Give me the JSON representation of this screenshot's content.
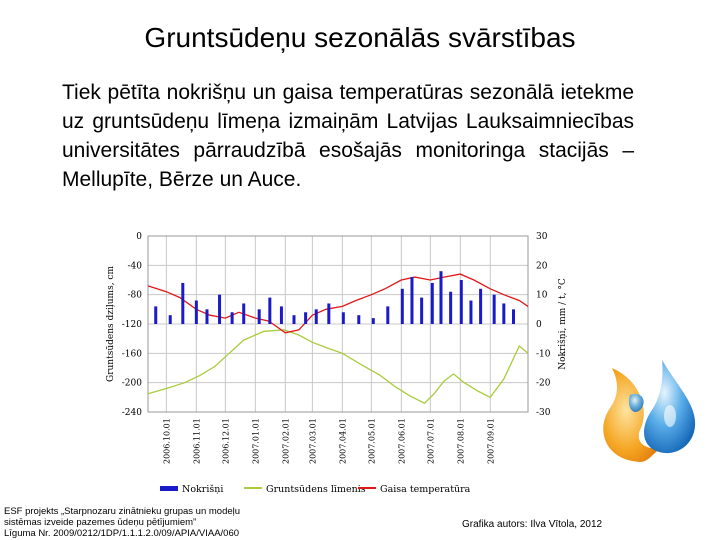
{
  "slide": {
    "title": "Gruntsūdeņu sezonālās svārstības",
    "body": "Tiek pētīta nokrišņu un gaisa temperatūras sezonālā ietekme uz gruntsūdeņu līmeņa izmaiņām Latvijas Lauksaimniecības universitātes pārraudzībā esošajās monitoringa stacijās – Mellupīte, Bērze un Auce.",
    "footer_left_lines": [
      "ESF projekts „Starpnozaru zinātnieku grupas un modeļu",
      "sistēmas izveide pazemes ūdeņu pētījumiem”",
      "Līguma Nr. 2009/0212/1DP/1.1.1.2.0/09/APIA/VIAA/060"
    ],
    "footer_right": "Grafika autors: Ilva Vītola, 2012"
  },
  "colors": {
    "groundwater": "#a8cc3c",
    "precipitation": "#1a1ac8",
    "temperature": "#e01818",
    "grid": "#c8c8c8"
  },
  "logo_icon": "water-drop-logo-icon",
  "chart_data": {
    "type": "line",
    "x_ticks": [
      "2006.10.01",
      "2006.11.01",
      "2006.12.01",
      "2007.01.01",
      "2007.02.01",
      "2007.03.01",
      "2007.04.01",
      "2007.05.01",
      "2007.06.01",
      "2007.07.01",
      "2007.08.01",
      "2007.09.01"
    ],
    "x_range": [
      "2006.09.12",
      "2007.10.10"
    ],
    "y_left": {
      "label": "Gruntsūdens dziļums, cm",
      "ticks": [
        0,
        -40,
        -80,
        -120,
        -160,
        -200,
        -240
      ],
      "range": [
        -240,
        0
      ]
    },
    "y_right": {
      "label": "Nokrišņi, mm / t, °C",
      "ticks": [
        30,
        20,
        10,
        0,
        -10,
        -20,
        -30
      ],
      "range": [
        -30,
        30
      ]
    },
    "legend": [
      "Nokrišņi",
      "Gruntsūdens līmenis",
      "Gaisa temperatūra"
    ],
    "legend_position": "bottom",
    "grid": true,
    "series": [
      {
        "name": "Gruntsūdens līmenis",
        "axis": "left",
        "x": [
          "2006.09.12",
          "2006.10.01",
          "2006.10.20",
          "2006.11.05",
          "2006.11.20",
          "2006.12.05",
          "2006.12.20",
          "2007.01.10",
          "2007.01.31",
          "2007.02.15",
          "2007.03.01",
          "2007.03.15",
          "2007.04.01",
          "2007.04.20",
          "2007.05.10",
          "2007.05.25",
          "2007.06.10",
          "2007.06.25",
          "2007.07.05",
          "2007.07.15",
          "2007.07.25",
          "2007.08.05",
          "2007.08.20",
          "2007.09.01",
          "2007.09.15",
          "2007.10.01",
          "2007.10.10"
        ],
        "values": [
          -215,
          -208,
          -200,
          -190,
          -178,
          -160,
          -142,
          -130,
          -128,
          -135,
          -145,
          -152,
          -160,
          -175,
          -190,
          -205,
          -218,
          -228,
          -215,
          -198,
          -188,
          -200,
          -212,
          -220,
          -195,
          -150,
          -160
        ]
      },
      {
        "name": "Gaisa temperatūra",
        "axis": "right",
        "x": [
          "2006.09.12",
          "2006.10.01",
          "2006.10.15",
          "2006.11.01",
          "2006.11.15",
          "2006.12.01",
          "2006.12.15",
          "2007.01.01",
          "2007.01.15",
          "2007.02.01",
          "2007.02.15",
          "2007.03.01",
          "2007.03.15",
          "2007.04.01",
          "2007.04.15",
          "2007.05.01",
          "2007.05.15",
          "2007.06.01",
          "2007.06.15",
          "2007.07.01",
          "2007.07.15",
          "2007.08.01",
          "2007.08.15",
          "2007.09.01",
          "2007.09.15",
          "2007.10.01",
          "2007.10.10"
        ],
        "values": [
          13,
          11,
          9,
          5,
          3,
          2,
          4,
          2,
          1,
          -3,
          -2,
          3,
          5,
          6,
          8,
          10,
          12,
          15,
          16,
          15,
          16,
          17,
          15,
          12,
          10,
          8,
          6
        ]
      },
      {
        "name": "Nokrišņi",
        "axis": "right",
        "x": [
          "2006.09.20",
          "2006.10.05",
          "2006.10.18",
          "2006.11.01",
          "2006.11.12",
          "2006.11.25",
          "2006.12.08",
          "2006.12.20",
          "2007.01.05",
          "2007.01.16",
          "2007.01.28",
          "2007.02.10",
          "2007.02.22",
          "2007.03.05",
          "2007.03.18",
          "2007.04.02",
          "2007.04.18",
          "2007.05.03",
          "2007.05.18",
          "2007.06.02",
          "2007.06.12",
          "2007.06.22",
          "2007.07.03",
          "2007.07.12",
          "2007.07.22",
          "2007.08.02",
          "2007.08.12",
          "2007.08.22",
          "2007.09.05",
          "2007.09.15",
          "2007.09.25"
        ],
        "values": [
          6,
          3,
          14,
          8,
          5,
          10,
          4,
          7,
          5,
          9,
          6,
          3,
          4,
          5,
          7,
          4,
          3,
          2,
          6,
          12,
          16,
          9,
          14,
          18,
          11,
          15,
          8,
          12,
          10,
          7,
          5
        ]
      }
    ]
  }
}
